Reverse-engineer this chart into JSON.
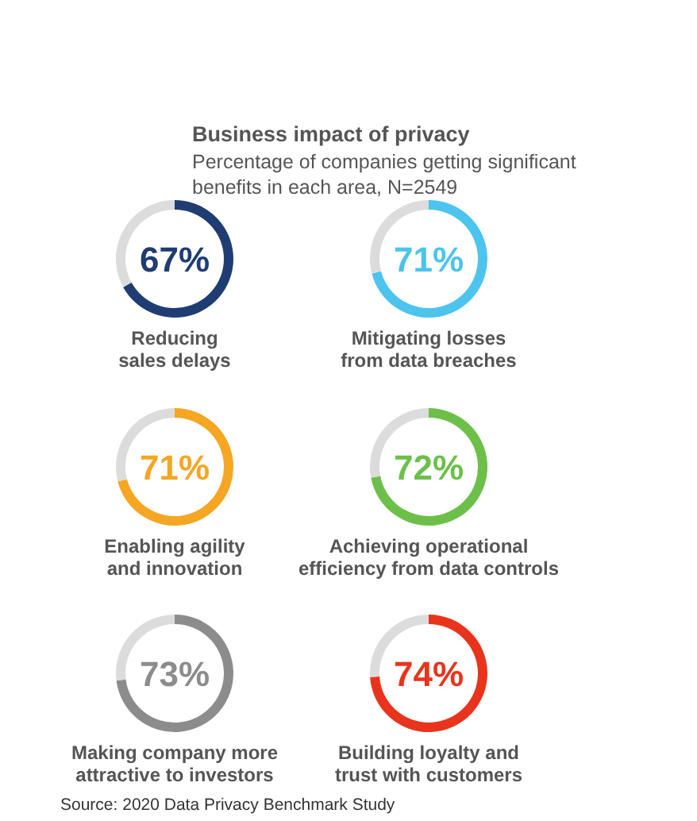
{
  "chart_data": [
    {
      "type": "donut",
      "title": "Business impact of privacy",
      "subtitle": "Percentage of companies getting significant benefits in each area, N=2549",
      "categories": [
        "Reducing sales delays",
        null
      ],
      "values": [
        67,
        33
      ],
      "colors": [
        "#1f3d73",
        "#dcdcdc"
      ],
      "value_labels": [
        "67%",
        null
      ]
    },
    {
      "type": "donut",
      "categories": [
        "Mitigating losses from data breaches",
        null
      ],
      "values": [
        71,
        29
      ],
      "colors": [
        "#4cc4ee",
        "#dcdcdc"
      ],
      "value_labels": [
        "71%",
        null
      ]
    },
    {
      "type": "donut",
      "categories": [
        "Enabling agility and innovation",
        null
      ],
      "values": [
        71,
        29
      ],
      "colors": [
        "#f5a623",
        "#dcdcdc"
      ],
      "value_labels": [
        "71%",
        null
      ]
    },
    {
      "type": "donut",
      "categories": [
        "Achieving operational efficiency from data controls",
        null
      ],
      "values": [
        72,
        28
      ],
      "colors": [
        "#6cc04a",
        "#dcdcdc"
      ],
      "value_labels": [
        "72%",
        null
      ]
    },
    {
      "type": "donut",
      "categories": [
        "Making company more attractive to investors",
        null
      ],
      "values": [
        73,
        27
      ],
      "colors": [
        "#8c8c8c",
        "#dcdcdc"
      ],
      "value_labels": [
        "73%",
        null
      ]
    },
    {
      "type": "donut",
      "categories": [
        "Building loyalty and trust with customers",
        null
      ],
      "values": [
        74,
        26
      ],
      "colors": [
        "#e8341c",
        "#dcdcdc"
      ],
      "value_labels": [
        "74%",
        null
      ],
      "annotations": [
        "Source:  2020 Data Privacy Benchmark Study"
      ]
    }
  ]
}
